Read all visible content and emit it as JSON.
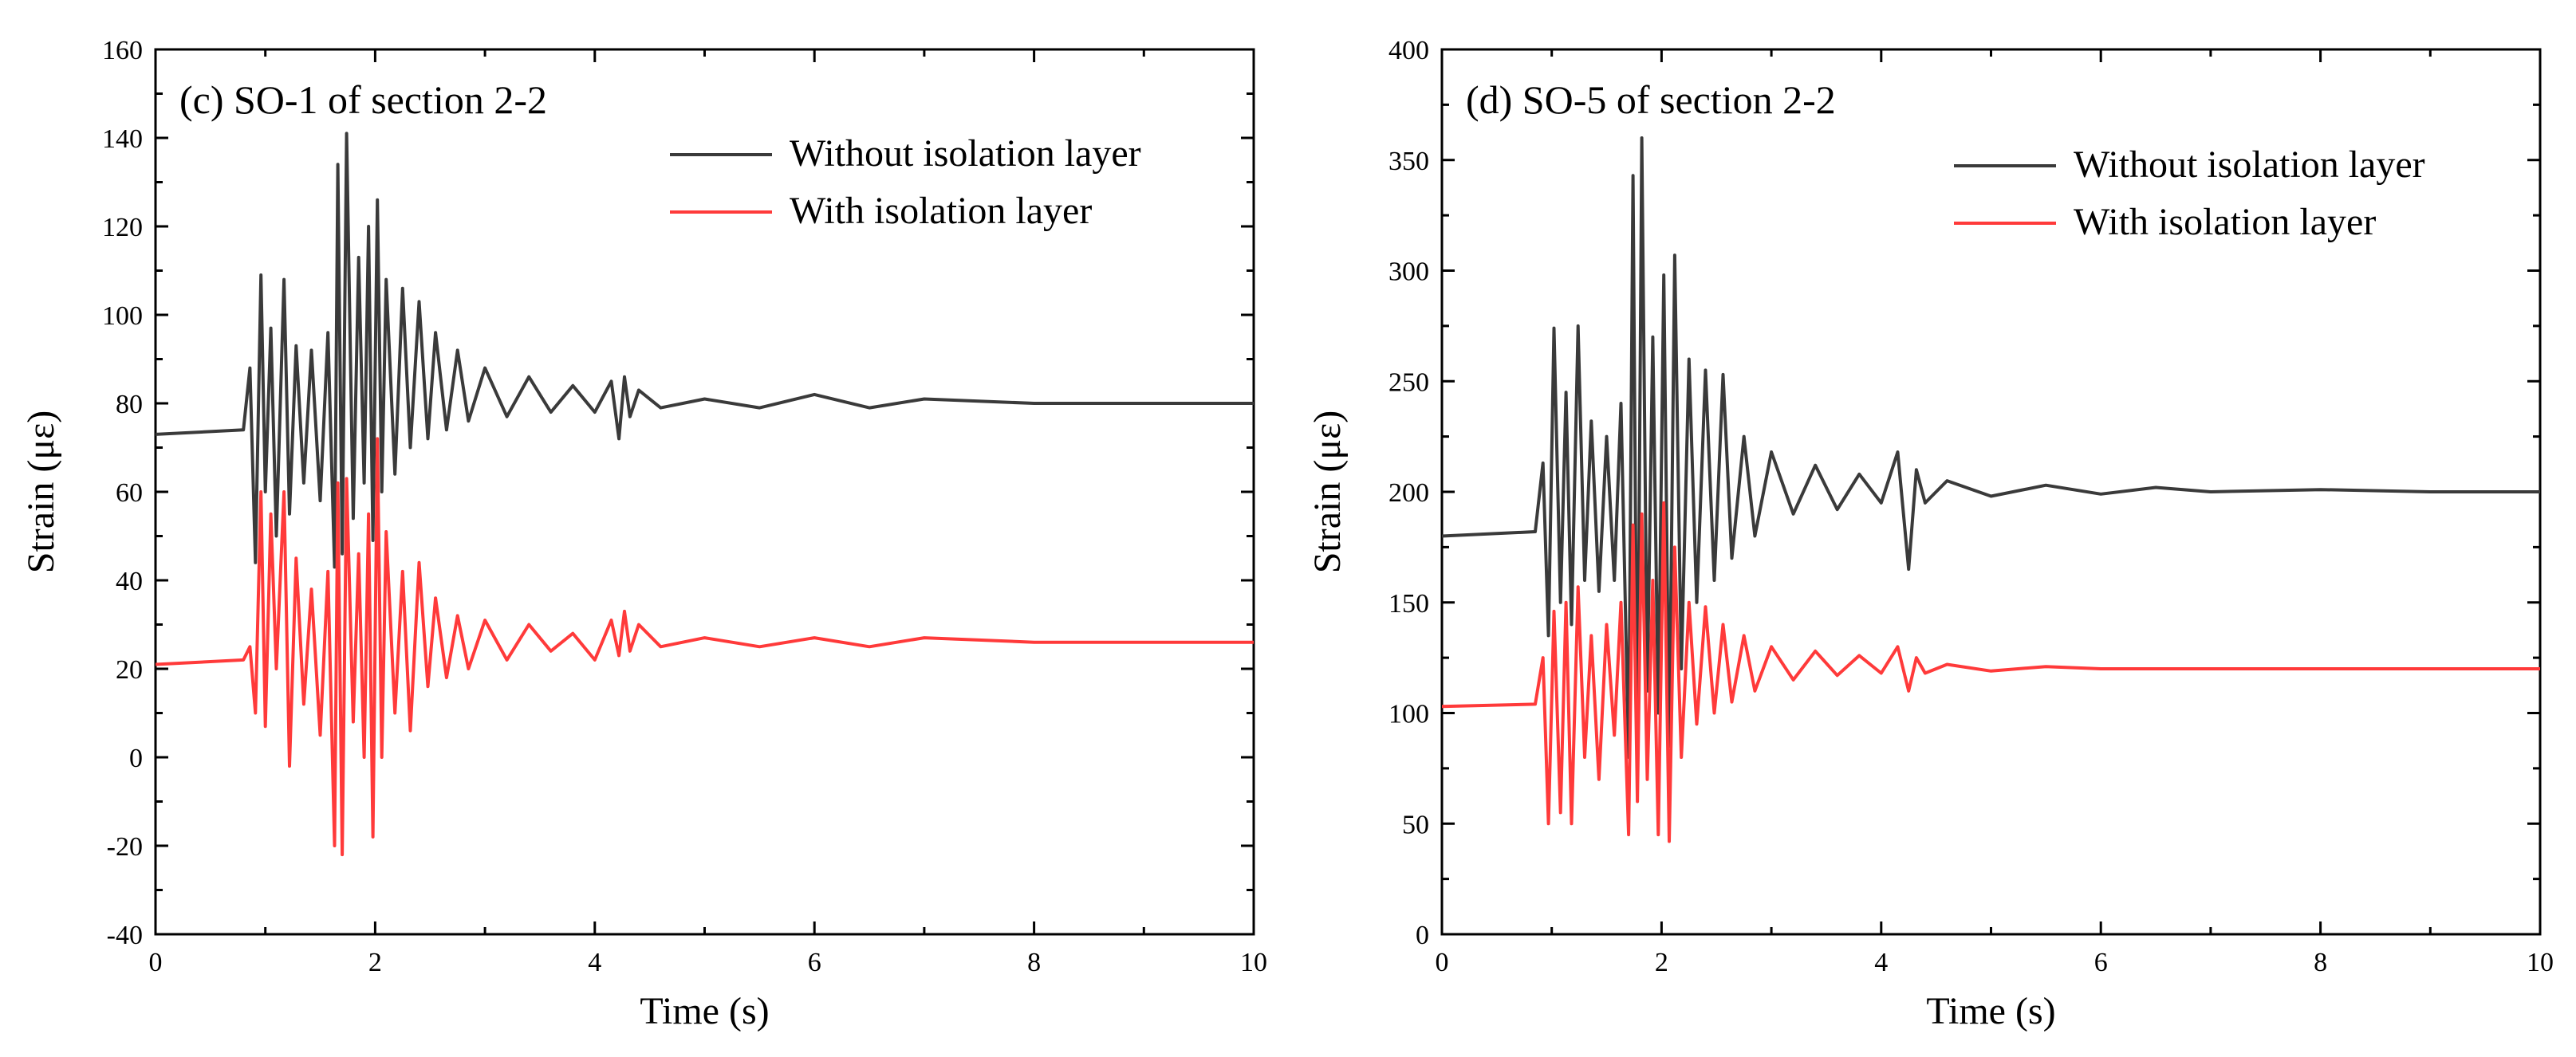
{
  "chart_data": [
    {
      "type": "line",
      "title": "(c) SO-1 of section 2-2",
      "xlabel": "Time (s)",
      "ylabel": "Strain (με)",
      "xlim": [
        0,
        10
      ],
      "ylim": [
        -40,
        160
      ],
      "xticks": [
        0,
        2,
        4,
        6,
        8,
        10
      ],
      "yticks": [
        -40,
        -20,
        0,
        20,
        40,
        60,
        80,
        100,
        120,
        140,
        160
      ],
      "legend_position": "top-right",
      "series": [
        {
          "name": "Without isolation layer",
          "color": "#3a3a3a",
          "x": [
            0,
            0.8,
            0.86,
            0.91,
            0.96,
            1.0,
            1.05,
            1.1,
            1.17,
            1.22,
            1.28,
            1.35,
            1.42,
            1.5,
            1.57,
            1.63,
            1.66,
            1.7,
            1.74,
            1.8,
            1.85,
            1.9,
            1.94,
            1.98,
            2.02,
            2.06,
            2.1,
            2.18,
            2.25,
            2.32,
            2.4,
            2.48,
            2.55,
            2.65,
            2.75,
            2.85,
            3.0,
            3.2,
            3.4,
            3.6,
            3.8,
            4.0,
            4.15,
            4.22,
            4.27,
            4.32,
            4.4,
            4.6,
            5.0,
            5.5,
            6.0,
            6.5,
            7.0,
            8.0,
            9.0,
            10.0
          ],
          "y": [
            73,
            74,
            88,
            44,
            109,
            60,
            97,
            50,
            108,
            55,
            93,
            62,
            92,
            58,
            96,
            43,
            134,
            46,
            141,
            54,
            113,
            62,
            120,
            49,
            126,
            60,
            108,
            64,
            106,
            70,
            103,
            72,
            96,
            74,
            92,
            76,
            88,
            77,
            86,
            78,
            84,
            78,
            85,
            72,
            86,
            77,
            83,
            79,
            81,
            79,
            82,
            79,
            81,
            80,
            80,
            80
          ]
        },
        {
          "name": "With isolation layer",
          "color": "#ff3a3a",
          "x": [
            0,
            0.8,
            0.86,
            0.91,
            0.96,
            1.0,
            1.05,
            1.1,
            1.17,
            1.22,
            1.28,
            1.35,
            1.42,
            1.5,
            1.57,
            1.63,
            1.66,
            1.7,
            1.74,
            1.8,
            1.85,
            1.9,
            1.94,
            1.98,
            2.02,
            2.06,
            2.1,
            2.18,
            2.25,
            2.32,
            2.4,
            2.48,
            2.55,
            2.65,
            2.75,
            2.85,
            3.0,
            3.2,
            3.4,
            3.6,
            3.8,
            4.0,
            4.15,
            4.22,
            4.27,
            4.32,
            4.4,
            4.6,
            5.0,
            5.5,
            6.0,
            6.5,
            7.0,
            8.0,
            9.0,
            10.0
          ],
          "y": [
            21,
            22,
            25,
            10,
            60,
            7,
            55,
            20,
            60,
            -2,
            45,
            12,
            38,
            5,
            42,
            -20,
            62,
            -22,
            63,
            8,
            46,
            0,
            55,
            -18,
            72,
            0,
            51,
            10,
            42,
            6,
            44,
            16,
            36,
            18,
            32,
            20,
            31,
            22,
            30,
            24,
            28,
            22,
            31,
            23,
            33,
            24,
            30,
            25,
            27,
            25,
            27,
            25,
            27,
            26,
            26,
            26
          ]
        }
      ]
    },
    {
      "type": "line",
      "title": "(d) SO-5 of section 2-2",
      "xlabel": "Time (s)",
      "ylabel": "Strain (με)",
      "xlim": [
        0,
        10
      ],
      "ylim": [
        0,
        400
      ],
      "xticks": [
        0,
        2,
        4,
        6,
        8,
        10
      ],
      "yticks": [
        0,
        50,
        100,
        150,
        200,
        250,
        300,
        350,
        400
      ],
      "legend_position": "top-right",
      "series": [
        {
          "name": "Without isolation layer",
          "color": "#3a3a3a",
          "x": [
            0,
            0.85,
            0.92,
            0.97,
            1.02,
            1.08,
            1.13,
            1.18,
            1.24,
            1.3,
            1.36,
            1.43,
            1.5,
            1.57,
            1.63,
            1.7,
            1.74,
            1.78,
            1.82,
            1.87,
            1.92,
            1.97,
            2.02,
            2.07,
            2.12,
            2.18,
            2.25,
            2.32,
            2.4,
            2.48,
            2.56,
            2.64,
            2.75,
            2.85,
            3.0,
            3.2,
            3.4,
            3.6,
            3.8,
            4.0,
            4.15,
            4.25,
            4.32,
            4.4,
            4.6,
            5.0,
            5.5,
            6.0,
            6.5,
            7.0,
            8.0,
            9.0,
            10.0
          ],
          "y": [
            180,
            182,
            213,
            135,
            274,
            150,
            245,
            140,
            275,
            160,
            232,
            155,
            225,
            160,
            240,
            80,
            343,
            70,
            360,
            110,
            270,
            100,
            298,
            85,
            307,
            120,
            260,
            150,
            255,
            160,
            253,
            170,
            225,
            180,
            218,
            190,
            212,
            192,
            208,
            195,
            218,
            165,
            210,
            195,
            205,
            198,
            203,
            199,
            202,
            200,
            201,
            200,
            200
          ]
        },
        {
          "name": "With isolation layer",
          "color": "#ff3a3a",
          "x": [
            0,
            0.85,
            0.92,
            0.97,
            1.02,
            1.08,
            1.13,
            1.18,
            1.24,
            1.3,
            1.36,
            1.43,
            1.5,
            1.57,
            1.63,
            1.7,
            1.74,
            1.78,
            1.82,
            1.87,
            1.92,
            1.97,
            2.02,
            2.07,
            2.12,
            2.18,
            2.25,
            2.32,
            2.4,
            2.48,
            2.56,
            2.64,
            2.75,
            2.85,
            3.0,
            3.2,
            3.4,
            3.6,
            3.8,
            4.0,
            4.15,
            4.25,
            4.32,
            4.4,
            4.6,
            5.0,
            5.5,
            6.0,
            6.5,
            7.0,
            8.0,
            9.0,
            10.0
          ],
          "y": [
            103,
            104,
            125,
            50,
            146,
            55,
            150,
            50,
            157,
            80,
            135,
            70,
            140,
            90,
            150,
            45,
            185,
            60,
            190,
            70,
            160,
            45,
            195,
            42,
            175,
            80,
            150,
            95,
            148,
            100,
            140,
            105,
            135,
            110,
            130,
            115,
            128,
            117,
            126,
            118,
            130,
            110,
            125,
            118,
            122,
            119,
            121,
            120,
            120,
            120,
            120,
            120,
            120
          ]
        }
      ]
    }
  ]
}
